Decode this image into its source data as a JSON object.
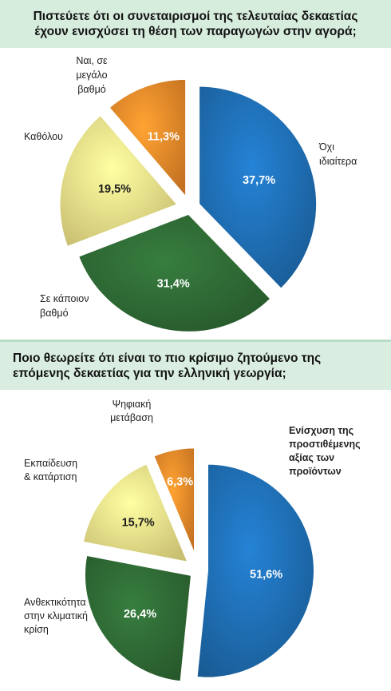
{
  "chart_data": [
    {
      "type": "pie",
      "title": "Πιστεύετε ότι οι συνεταιρισμοί της τελευταίας δεκαετίας\nέχουν ενισχύσει τη θέση των παραγωγών στην αγορά;",
      "slices": [
        {
          "label": "Όχι\nιδιαίτερα",
          "value": 37.7,
          "value_label": "37,7%",
          "color": "#1f6fb5"
        },
        {
          "label": "Σε κάποιον\nβαθμό",
          "value": 31.4,
          "value_label": "31,4%",
          "color": "#2f6b35"
        },
        {
          "label": "Καθόλου",
          "value": 19.5,
          "value_label": "19,5%",
          "color": "#f5e98a"
        },
        {
          "label": "Ναι, σε\nμεγάλο\nβαθμό",
          "value": 11.3,
          "value_label": "11,3%",
          "color": "#ef8a2a"
        }
      ]
    },
    {
      "type": "pie",
      "title": "Ποιο θεωρείτε ότι είναι το πιο κρίσιμο ζητούμενο της\nεπόμενης δεκαετίας για την ελληνική γεωργία;",
      "slices": [
        {
          "label": "Ενίσχυση της\nπροστιθέμενης\nαξίας των\nπροϊόντων",
          "value": 51.6,
          "value_label": "51,6%",
          "color": "#1f6fb5"
        },
        {
          "label": "Ανθεκτικότητα\nστην κλιματική\nκρίση",
          "value": 26.4,
          "value_label": "26,4%",
          "color": "#2f6b35"
        },
        {
          "label": "Εκπαίδευση\n& κατάρτιση",
          "value": 15.7,
          "value_label": "15,7%",
          "color": "#f5e98a"
        },
        {
          "label": "Ψηφιακή\nμετάβαση",
          "value": 6.3,
          "value_label": "6,3%",
          "color": "#ef8a2a"
        }
      ]
    }
  ]
}
